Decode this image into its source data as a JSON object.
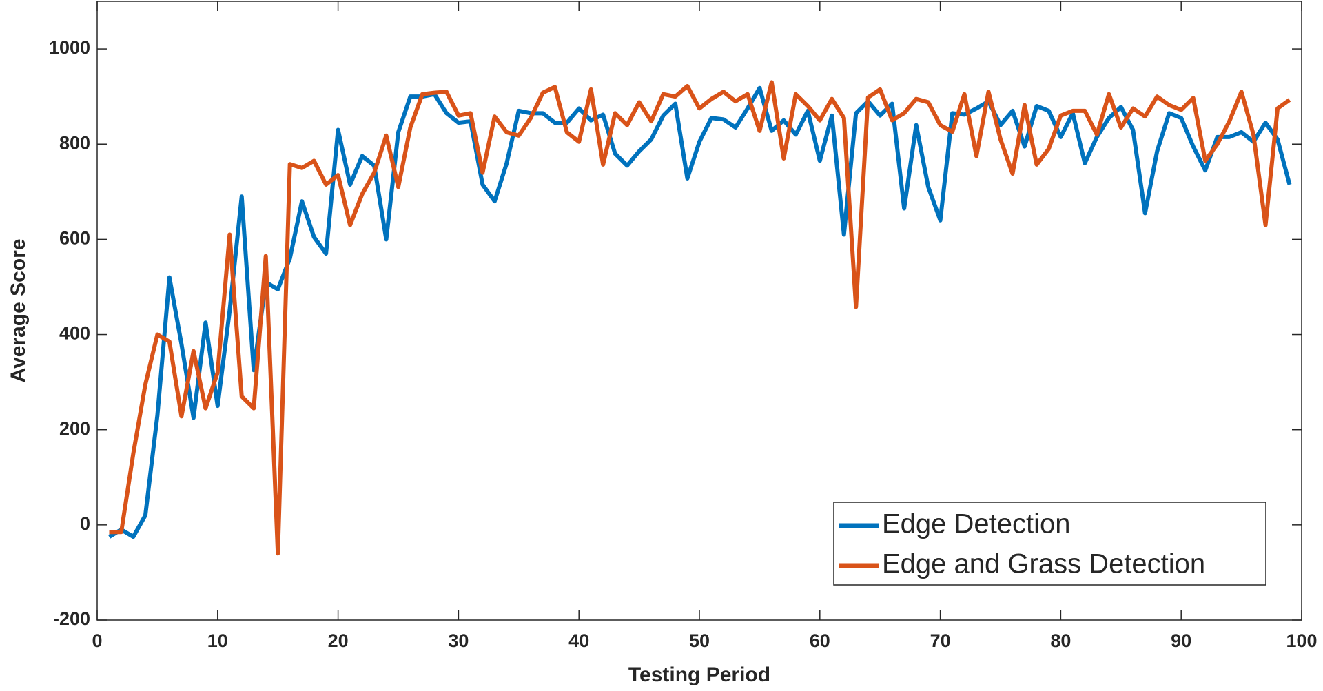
{
  "chart_data": {
    "type": "line",
    "x_label": "Testing Period",
    "y_label": "Average Score",
    "x": [
      1,
      2,
      3,
      4,
      5,
      6,
      7,
      8,
      9,
      10,
      11,
      12,
      13,
      14,
      15,
      16,
      17,
      18,
      19,
      20,
      21,
      22,
      23,
      24,
      25,
      26,
      27,
      28,
      29,
      30,
      31,
      32,
      33,
      34,
      35,
      36,
      37,
      38,
      39,
      40,
      41,
      42,
      43,
      44,
      45,
      46,
      47,
      48,
      49,
      50,
      51,
      52,
      53,
      54,
      55,
      56,
      57,
      58,
      59,
      60,
      61,
      62,
      63,
      64,
      65,
      66,
      67,
      68,
      69,
      70,
      71,
      72,
      73,
      74,
      75,
      76,
      77,
      78,
      79,
      80,
      81,
      82,
      83,
      84,
      85,
      86,
      87,
      88,
      89,
      90,
      91,
      92,
      93,
      94,
      95,
      96,
      97,
      98,
      99
    ],
    "series": [
      {
        "name": "Edge Detection",
        "color": "#0072BD",
        "values": [
          -25,
          -10,
          -25,
          20,
          230,
          520,
          380,
          225,
          425,
          250,
          450,
          690,
          325,
          510,
          495,
          560,
          680,
          605,
          570,
          830,
          715,
          775,
          755,
          600,
          825,
          900,
          900,
          905,
          865,
          845,
          848,
          715,
          680,
          760,
          870,
          865,
          865,
          845,
          845,
          875,
          850,
          862,
          780,
          755,
          785,
          810,
          860,
          885,
          728,
          805,
          855,
          852,
          835,
          875,
          918,
          828,
          850,
          820,
          870,
          765,
          860,
          610,
          865,
          890,
          860,
          885,
          665,
          840,
          710,
          640,
          865,
          862,
          875,
          890,
          840,
          870,
          795,
          880,
          870,
          815,
          865,
          760,
          815,
          855,
          878,
          830,
          655,
          785,
          865,
          855,
          795,
          745,
          815,
          815,
          825,
          805,
          845,
          810,
          715
        ]
      },
      {
        "name": "Edge and Grass Detection",
        "color": "#D95319",
        "values": [
          -15,
          -15,
          150,
          295,
          400,
          385,
          228,
          365,
          245,
          320,
          610,
          270,
          245,
          565,
          -60,
          758,
          750,
          765,
          715,
          735,
          630,
          695,
          740,
          818,
          710,
          835,
          905,
          908,
          910,
          860,
          865,
          740,
          858,
          825,
          818,
          855,
          908,
          920,
          825,
          805,
          915,
          757,
          865,
          840,
          888,
          848,
          905,
          900,
          922,
          875,
          895,
          910,
          890,
          905,
          828,
          930,
          770,
          905,
          880,
          850,
          895,
          855,
          458,
          898,
          915,
          850,
          865,
          895,
          888,
          840,
          826,
          905,
          775,
          910,
          810,
          738,
          882,
          757,
          790,
          860,
          870,
          870,
          820,
          905,
          835,
          875,
          858,
          900,
          882,
          872,
          897,
          765,
          800,
          848,
          910,
          820,
          630,
          875,
          893
        ]
      }
    ],
    "xlim": [
      0,
      100
    ],
    "xticks": [
      0,
      10,
      20,
      30,
      40,
      50,
      60,
      70,
      80,
      90,
      100
    ],
    "ylim": [
      -200,
      1100
    ],
    "yticks": [
      -200,
      0,
      200,
      400,
      600,
      800,
      1000
    ],
    "grid": false,
    "legend": "lower right"
  }
}
